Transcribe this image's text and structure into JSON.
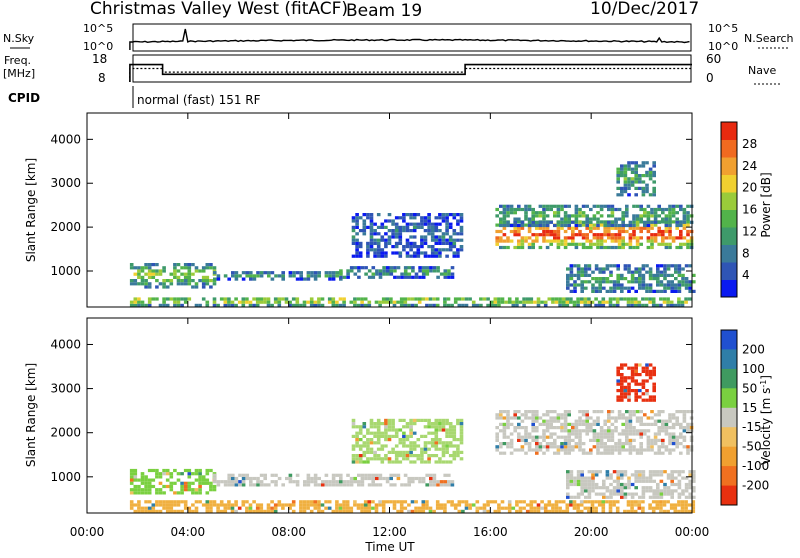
{
  "header": {
    "title": "Christmas Valley West (fitACF)",
    "beam": "Beam 19",
    "date": "10/Dec/2017"
  },
  "panels": {
    "nsky": {
      "left_label": "N.Sky",
      "left_ticks": [
        "10^5",
        "10^0"
      ],
      "right_label": "N.Search",
      "right_ticks": [
        "10^5",
        "10^0"
      ]
    },
    "freq": {
      "left_label_1": "Freq.",
      "left_label_2": "[MHz]",
      "left_ticks": [
        "18",
        "8"
      ],
      "right_label": "Nave",
      "right_ticks": [
        "60",
        "0"
      ]
    },
    "cpid": {
      "label": "CPID",
      "text": "normal (fast) 151 RF"
    }
  },
  "chart_data": [
    {
      "type": "line",
      "name": "sky-noise-and-frequency-summary",
      "x_unit": "hours UT",
      "frequency_MHz": [
        {
          "start": 1.7,
          "end": 3.0,
          "value": 15.0
        },
        {
          "start": 3.0,
          "end": 15.0,
          "value": 10.0
        },
        {
          "start": 15.0,
          "end": 24.0,
          "value": 15.0
        }
      ],
      "nave": [
        {
          "start": 1.7,
          "end": 3.0,
          "value": 30
        },
        {
          "start": 3.0,
          "end": 15.0,
          "value": 22
        },
        {
          "start": 15.0,
          "end": 24.0,
          "value": 30
        }
      ],
      "sky_noise_start": 1.7
    },
    {
      "type": "heatmap",
      "name": "power",
      "xlabel": "",
      "ylabel": "Slant Range [km]",
      "xlim": [
        0,
        24
      ],
      "ylim": [
        180,
        4600
      ],
      "yticks": [
        "1000",
        "2000",
        "3000",
        "4000"
      ],
      "colorbar": {
        "label": "Power [dB]",
        "ticks": [
          "4",
          "8",
          "12",
          "16",
          "20",
          "24",
          "28"
        ],
        "colors": [
          "#0a1af0",
          "#2f55b5",
          "#3a7a9a",
          "#3e9a6a",
          "#52b34a",
          "#9acb3a",
          "#f0d030",
          "#f0a030",
          "#f06a20",
          "#e82a10"
        ]
      },
      "regions": [
        {
          "t0": 1.7,
          "t1": 5.0,
          "r0": 600,
          "r1": 1150,
          "level": 0.45
        },
        {
          "t0": 5.0,
          "t1": 10.0,
          "r0": 780,
          "r1": 950,
          "level": 0.3
        },
        {
          "t0": 10.0,
          "t1": 14.5,
          "r0": 820,
          "r1": 1050,
          "level": 0.3
        },
        {
          "t0": 10.5,
          "t1": 14.8,
          "r0": 1300,
          "r1": 2300,
          "level": 0.15
        },
        {
          "t0": 16.2,
          "t1": 24.0,
          "r0": 1500,
          "r1": 2100,
          "level": 0.85
        },
        {
          "t0": 16.2,
          "t1": 24.0,
          "r0": 2000,
          "r1": 2500,
          "level": 0.35
        },
        {
          "t0": 19.0,
          "t1": 24.0,
          "r0": 500,
          "r1": 1100,
          "level": 0.3
        },
        {
          "t0": 1.7,
          "t1": 24.0,
          "r0": 180,
          "r1": 380,
          "level": 0.55
        },
        {
          "t0": 21.0,
          "t1": 22.5,
          "r0": 2700,
          "r1": 3500,
          "level": 0.35
        }
      ]
    },
    {
      "type": "heatmap",
      "name": "velocity",
      "xlabel": "Time UT",
      "ylabel": "Slant Range [km]",
      "xlim": [
        0,
        24
      ],
      "ylim": [
        180,
        4600
      ],
      "xticks": [
        "00:00",
        "04:00",
        "08:00",
        "12:00",
        "16:00",
        "20:00",
        "00:00"
      ],
      "yticks": [
        "1000",
        "2000",
        "3000",
        "4000"
      ],
      "colorbar": {
        "label": "Velocity [m s",
        "label_sup": "-1",
        "label_end": "]",
        "ticks": [
          "200",
          "100",
          "50",
          "15",
          "-15",
          "-50",
          "-100",
          "-200"
        ],
        "colors": [
          "#2050d0",
          "#2f7ea8",
          "#3f9a60",
          "#7ad040",
          "#c8c8c0",
          "#f0c060",
          "#f0a030",
          "#f07020",
          "#e83010"
        ]
      },
      "regions": [
        {
          "t0": 1.7,
          "t1": 5.0,
          "r0": 600,
          "r1": 1150,
          "color": "#7ad040"
        },
        {
          "t0": 5.0,
          "t1": 14.5,
          "r0": 780,
          "r1": 1050,
          "color": "#c8c8c0"
        },
        {
          "t0": 10.5,
          "t1": 14.8,
          "r0": 1300,
          "r1": 2300,
          "color": "#a8d870"
        },
        {
          "t0": 16.2,
          "t1": 24.0,
          "r0": 1500,
          "r1": 2500,
          "color": "#c8c8c0"
        },
        {
          "t0": 19.0,
          "t1": 24.0,
          "r0": 500,
          "r1": 1100,
          "color": "#c8c8c0"
        },
        {
          "t0": 1.7,
          "t1": 24.0,
          "r0": 180,
          "r1": 420,
          "color": "#f0b040"
        },
        {
          "t0": 21.0,
          "t1": 22.5,
          "r0": 2700,
          "r1": 3500,
          "color": "#e83010"
        }
      ]
    }
  ]
}
